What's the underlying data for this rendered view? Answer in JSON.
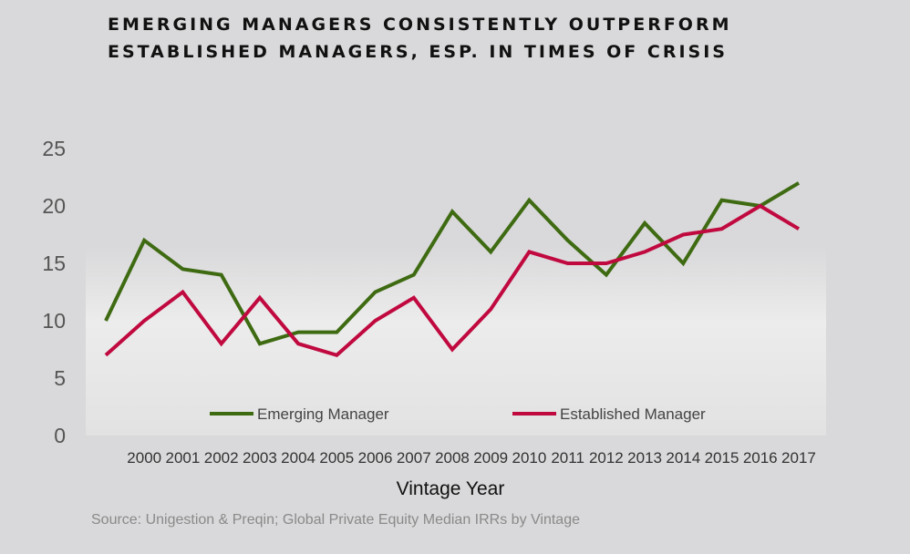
{
  "title_lines": [
    "EMERGING MANAGERS CONSISTENTLY OUTPERFORM",
    "ESTABLISHED MANAGERS, ESP. IN TIMES OF CRISIS"
  ],
  "source": "Source: Unigestion & Preqin; Global Private Equity Median IRRs by Vintage",
  "chart_data": {
    "type": "line",
    "title": "EMERGING MANAGERS CONSISTENTLY OUTPERFORM ESTABLISHED MANAGERS, ESP. IN TIMES OF CRISIS",
    "xlabel": "Vintage Year",
    "ylabel": "",
    "ylim": [
      0,
      25
    ],
    "yticks": [
      "0",
      "5",
      "10",
      "15",
      "20",
      "25"
    ],
    "x": [
      "1999",
      "2000",
      "2001",
      "2002",
      "2003",
      "2004",
      "2005",
      "2006",
      "2007",
      "2008",
      "2009",
      "2010",
      "2011",
      "2012",
      "2013",
      "2014",
      "2015",
      "2016",
      "2017"
    ],
    "xtick_labels": [
      "",
      "2000",
      "2001",
      "2002",
      "2003",
      "2004",
      "2005",
      "2006",
      "2007",
      "2008",
      "2009",
      "2010",
      "2011",
      "2012",
      "2013",
      "2014",
      "2015",
      "2016",
      "2017"
    ],
    "grid": false,
    "legend_position": "bottom-inside",
    "series": [
      {
        "name": "Emerging Manager",
        "color": "#3e6b12",
        "values": [
          10,
          17,
          14.5,
          14,
          8,
          9,
          9,
          12.5,
          14,
          19.5,
          16,
          20.5,
          17,
          14,
          18.5,
          15,
          20.5,
          20,
          22
        ]
      },
      {
        "name": "Established Manager",
        "color": "#c0093f",
        "values": [
          7,
          10,
          12.5,
          8,
          12,
          8,
          7,
          10,
          12,
          7.5,
          11,
          16,
          15,
          15,
          16,
          17.5,
          18,
          20,
          18
        ]
      }
    ]
  }
}
